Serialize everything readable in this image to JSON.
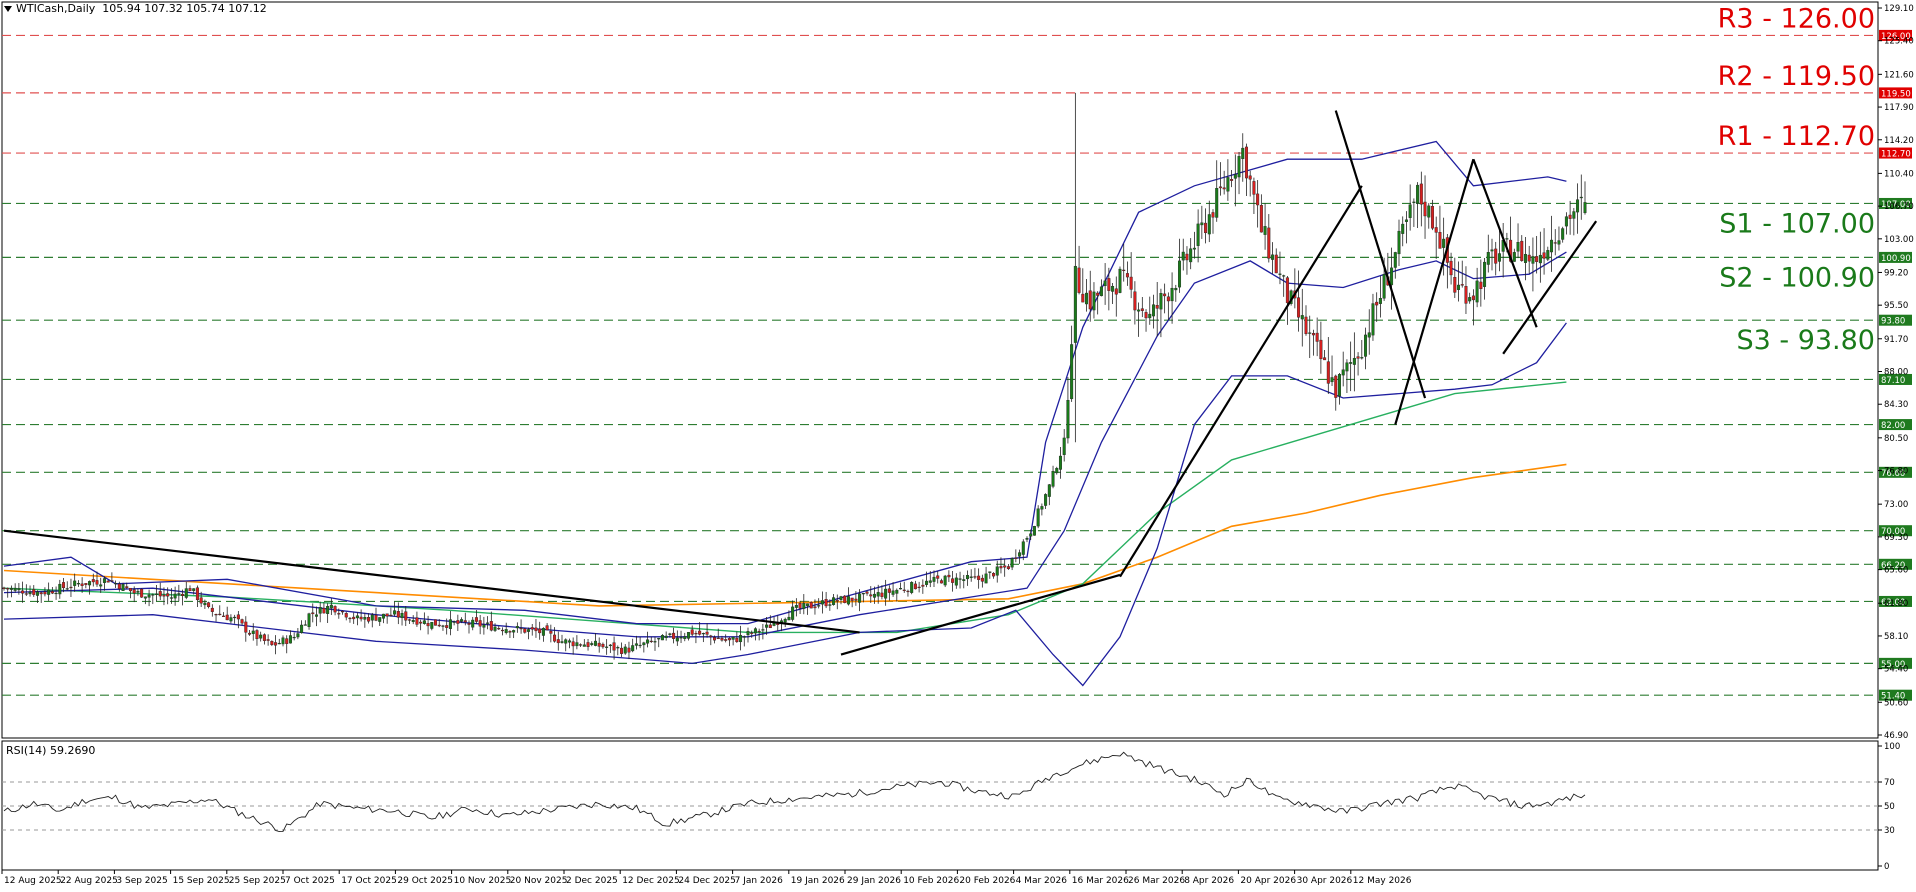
{
  "header": {
    "symbol": "WTICash,Daily",
    "ohlc": "105.94 107.32 105.74 107.12"
  },
  "rsi": {
    "label": "RSI(14) 59.2690",
    "levels": [
      "100",
      "70",
      "50",
      "30",
      "0"
    ]
  },
  "colors": {
    "bull": "#1a7a1a",
    "bear": "#d42020",
    "bollinger": "#1f1f9f",
    "ma_green": "#28b060",
    "ma_orange": "#ff8c00",
    "support_line": "#2e7d32",
    "resistance_line": "#e05050",
    "support_text": "#1a7a1a",
    "resistance_text": "#e00000"
  },
  "chart_data": {
    "type": "candlestick",
    "y_axis_ticks": [
      "129.10",
      "125.40",
      "121.60",
      "117.90",
      "114.20",
      "110.40",
      "106.70",
      "103.00",
      "99.20",
      "95.50",
      "91.70",
      "88.00",
      "84.30",
      "80.50",
      "76.80",
      "73.00",
      "69.30",
      "65.60",
      "61.80",
      "58.10",
      "54.40",
      "50.60",
      "46.90"
    ],
    "ylim": [
      46.9,
      129.1
    ],
    "x_axis_labels": [
      "12 Aug 2025",
      "22 Aug 2025",
      "3 Sep 2025",
      "15 Sep 2025",
      "25 Sep 2025",
      "7 Oct 2025",
      "17 Oct 2025",
      "29 Oct 2025",
      "10 Nov 2025",
      "20 Nov 2025",
      "2 Dec 2025",
      "12 Dec 2025",
      "24 Dec 2025",
      "7 Jan 2026",
      "19 Jan 2026",
      "29 Jan 2026",
      "10 Feb 2026",
      "20 Feb 2026",
      "4 Mar 2026",
      "16 Mar 2026",
      "26 Mar 2026",
      "8 Apr 2026",
      "20 Apr 2026",
      "30 Apr 2026",
      "12 May 2026"
    ],
    "levels": [
      {
        "name": "R3",
        "text": "R3 - 126.00",
        "tag": "126.00",
        "value": 126.0,
        "kind": "resistance"
      },
      {
        "name": "R2",
        "text": "R2 - 119.50",
        "tag": "119.50",
        "value": 119.5,
        "kind": "resistance"
      },
      {
        "name": "R1",
        "text": "R1 - 112.70",
        "tag": "112.70",
        "value": 112.7,
        "kind": "resistance"
      },
      {
        "name": "S1",
        "text": "S1 - 107.00",
        "tag": "107.00",
        "value": 107.0,
        "kind": "support"
      },
      {
        "name": "S2",
        "text": "S2 - 100.90",
        "tag": "100.90",
        "value": 100.9,
        "kind": "support"
      },
      {
        "name": "S3",
        "text": "S3 - 93.80",
        "tag": "93.80",
        "value": 93.8,
        "kind": "support"
      },
      {
        "name": "",
        "text": "",
        "tag": "87.10",
        "value": 87.1,
        "kind": "support"
      },
      {
        "name": "",
        "text": "",
        "tag": "82.00",
        "value": 82.0,
        "kind": "support"
      },
      {
        "name": "",
        "text": "",
        "tag": "76.60",
        "value": 76.6,
        "kind": "support"
      },
      {
        "name": "",
        "text": "",
        "tag": "70.00",
        "value": 70.0,
        "kind": "support"
      },
      {
        "name": "",
        "text": "",
        "tag": "66.20",
        "value": 66.2,
        "kind": "support"
      },
      {
        "name": "",
        "text": "",
        "tag": "62.00",
        "value": 62.0,
        "kind": "support"
      },
      {
        "name": "",
        "text": "",
        "tag": "55.00",
        "value": 55.0,
        "kind": "support"
      },
      {
        "name": "",
        "text": "",
        "tag": "51.40",
        "value": 51.4,
        "kind": "support"
      }
    ],
    "close_path": [
      [
        0,
        63.5
      ],
      [
        10,
        63.0
      ],
      [
        20,
        64.0
      ],
      [
        28,
        64.5
      ],
      [
        35,
        63.0
      ],
      [
        45,
        62.5
      ],
      [
        50,
        63.5
      ],
      [
        55,
        61.0
      ],
      [
        62,
        60.0
      ],
      [
        66,
        58.5
      ],
      [
        72,
        57.0
      ],
      [
        78,
        58.0
      ],
      [
        82,
        60.5
      ],
      [
        88,
        61.5
      ],
      [
        95,
        60.0
      ],
      [
        105,
        60.5
      ],
      [
        115,
        59.5
      ],
      [
        125,
        59.5
      ],
      [
        135,
        59.0
      ],
      [
        145,
        58.5
      ],
      [
        150,
        57.5
      ],
      [
        160,
        57.0
      ],
      [
        167,
        56.5
      ],
      [
        175,
        57.5
      ],
      [
        185,
        58.5
      ],
      [
        195,
        57.5
      ],
      [
        205,
        59.0
      ],
      [
        212,
        61.0
      ],
      [
        222,
        62.0
      ],
      [
        232,
        62.5
      ],
      [
        242,
        63.5
      ],
      [
        252,
        64.5
      ],
      [
        262,
        64.5
      ],
      [
        270,
        66.0
      ],
      [
        276,
        70.0
      ],
      [
        281,
        75.0
      ],
      [
        285,
        80.0
      ],
      [
        288,
        98.5
      ],
      [
        292,
        96.0
      ],
      [
        300,
        98.5
      ],
      [
        308,
        94.0
      ],
      [
        315,
        98.5
      ],
      [
        322,
        104.0
      ],
      [
        328,
        109.0
      ],
      [
        333,
        113.0
      ],
      [
        338,
        104.0
      ],
      [
        345,
        96.5
      ],
      [
        352,
        91.0
      ],
      [
        358,
        86.0
      ],
      [
        365,
        91.0
      ],
      [
        372,
        99.0
      ],
      [
        380,
        108.0
      ],
      [
        385,
        104.5
      ],
      [
        390,
        97.5
      ],
      [
        395,
        97.0
      ],
      [
        400,
        101.0
      ],
      [
        406,
        102.0
      ],
      [
        411,
        100.5
      ],
      [
        416,
        103.0
      ],
      [
        420,
        105.5
      ],
      [
        425,
        107.12
      ]
    ],
    "bollinger_upper": [
      [
        0,
        66.0
      ],
      [
        18,
        67.0
      ],
      [
        30,
        64.0
      ],
      [
        60,
        64.5
      ],
      [
        100,
        61.5
      ],
      [
        140,
        61.0
      ],
      [
        170,
        59.5
      ],
      [
        200,
        59.5
      ],
      [
        230,
        63.0
      ],
      [
        260,
        66.5
      ],
      [
        275,
        67.0
      ],
      [
        280,
        80.0
      ],
      [
        290,
        93.0
      ],
      [
        305,
        106.0
      ],
      [
        320,
        109.0
      ],
      [
        345,
        112.0
      ],
      [
        365,
        112.0
      ],
      [
        385,
        114.0
      ],
      [
        395,
        109.0
      ],
      [
        415,
        110.0
      ],
      [
        420,
        109.5
      ]
    ],
    "bollinger_middle": [
      [
        0,
        63.0
      ],
      [
        40,
        63.5
      ],
      [
        100,
        60.5
      ],
      [
        140,
        59.0
      ],
      [
        170,
        58.0
      ],
      [
        200,
        58.0
      ],
      [
        230,
        60.5
      ],
      [
        260,
        62.5
      ],
      [
        275,
        63.5
      ],
      [
        285,
        70.0
      ],
      [
        295,
        80.0
      ],
      [
        310,
        92.0
      ],
      [
        320,
        98.0
      ],
      [
        335,
        100.5
      ],
      [
        345,
        98.0
      ],
      [
        360,
        97.5
      ],
      [
        375,
        99.5
      ],
      [
        385,
        100.5
      ],
      [
        395,
        98.5
      ],
      [
        410,
        99.0
      ],
      [
        420,
        101.5
      ]
    ],
    "bollinger_lower": [
      [
        0,
        60.0
      ],
      [
        40,
        60.5
      ],
      [
        100,
        57.5
      ],
      [
        140,
        56.5
      ],
      [
        170,
        55.5
      ],
      [
        185,
        55.0
      ],
      [
        200,
        56.0
      ],
      [
        230,
        58.5
      ],
      [
        260,
        59.0
      ],
      [
        272,
        61.0
      ],
      [
        282,
        56.0
      ],
      [
        290,
        52.5
      ],
      [
        300,
        58.0
      ],
      [
        310,
        68.0
      ],
      [
        320,
        82.0
      ],
      [
        330,
        87.5
      ],
      [
        345,
        87.5
      ],
      [
        360,
        85.0
      ],
      [
        375,
        85.5
      ],
      [
        390,
        86.0
      ],
      [
        400,
        86.5
      ],
      [
        412,
        89.0
      ],
      [
        420,
        93.5
      ]
    ],
    "ma_green": [
      [
        0,
        63.5
      ],
      [
        60,
        62.5
      ],
      [
        120,
        61.0
      ],
      [
        200,
        58.5
      ],
      [
        240,
        58.5
      ],
      [
        270,
        60.5
      ],
      [
        290,
        64.0
      ],
      [
        310,
        72.0
      ],
      [
        330,
        78.0
      ],
      [
        350,
        80.5
      ],
      [
        370,
        83.0
      ],
      [
        390,
        85.5
      ],
      [
        420,
        86.8
      ]
    ],
    "ma_orange": [
      [
        0,
        65.5
      ],
      [
        80,
        63.5
      ],
      [
        160,
        61.5
      ],
      [
        230,
        62.0
      ],
      [
        270,
        62.3
      ],
      [
        290,
        64.0
      ],
      [
        310,
        67.0
      ],
      [
        330,
        70.5
      ],
      [
        350,
        72.0
      ],
      [
        370,
        74.0
      ],
      [
        395,
        76.0
      ],
      [
        420,
        77.5
      ]
    ],
    "trendlines": [
      [
        [
          0,
          70.0
        ],
        [
          230,
          58.5
        ]
      ],
      [
        [
          225,
          56.0
        ],
        [
          300,
          65.0
        ]
      ],
      [
        [
          300,
          64.8
        ],
        [
          365,
          109.0
        ]
      ],
      [
        [
          358,
          117.5
        ],
        [
          382,
          85.0
        ]
      ],
      [
        [
          374,
          82.0
        ],
        [
          395,
          112.0
        ]
      ],
      [
        [
          395,
          112.0
        ],
        [
          412,
          93.0
        ]
      ],
      [
        [
          403,
          90.0
        ],
        [
          428,
          105.0
        ]
      ]
    ],
    "rsi_path": [
      [
        0,
        45.0
      ],
      [
        8,
        52.0
      ],
      [
        15,
        46.0
      ],
      [
        22,
        55.0
      ],
      [
        30,
        57.0
      ],
      [
        37,
        48.0
      ],
      [
        45,
        51.0
      ],
      [
        55,
        56.0
      ],
      [
        65,
        42.0
      ],
      [
        75,
        30.0
      ],
      [
        85,
        52.0
      ],
      [
        95,
        48.0
      ],
      [
        105,
        46.0
      ],
      [
        115,
        40.0
      ],
      [
        125,
        48.0
      ],
      [
        135,
        42.0
      ],
      [
        145,
        46.0
      ],
      [
        160,
        52.0
      ],
      [
        170,
        48.0
      ],
      [
        178,
        35.0
      ],
      [
        188,
        42.0
      ],
      [
        200,
        52.0
      ],
      [
        212,
        56.0
      ],
      [
        228,
        60.0
      ],
      [
        240,
        66.0
      ],
      [
        252,
        70.0
      ],
      [
        262,
        62.0
      ],
      [
        272,
        58.0
      ],
      [
        282,
        76.0
      ],
      [
        290,
        85.0
      ],
      [
        300,
        94.0
      ],
      [
        305,
        88.0
      ],
      [
        312,
        80.0
      ],
      [
        320,
        72.0
      ],
      [
        328,
        60.0
      ],
      [
        335,
        72.0
      ],
      [
        342,
        56.0
      ],
      [
        350,
        52.0
      ],
      [
        360,
        45.0
      ],
      [
        370,
        52.0
      ],
      [
        380,
        57.0
      ],
      [
        390,
        67.0
      ],
      [
        398,
        58.0
      ],
      [
        408,
        50.0
      ],
      [
        415,
        52.0
      ],
      [
        420,
        56.0
      ],
      [
        425,
        59.27
      ]
    ]
  }
}
